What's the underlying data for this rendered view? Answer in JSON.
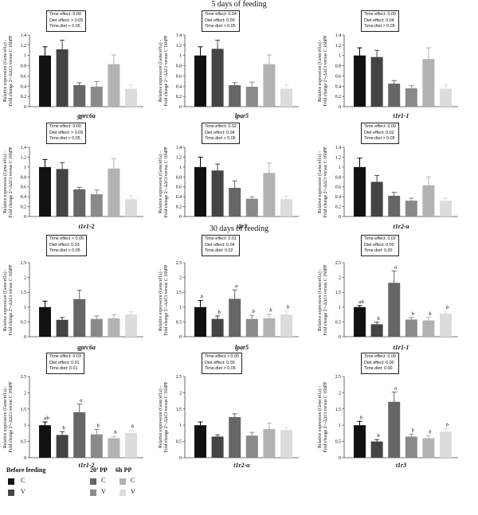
{
  "section_titles": [
    "5 days of feeding",
    "30 days of feeding"
  ],
  "ylabel_line1": "Relative expression (Gene/ef1a) -",
  "ylabel_line2": "Fold change 2^-ΔΔCt versus C 16hPP",
  "legend": {
    "groups": [
      "Before feeding",
      "20’ PP",
      "6h PP"
    ],
    "diets": [
      "C",
      "V"
    ],
    "colors": {
      "before_C": "#111111",
      "before_V": "#444444",
      "pp20_C": "#666666",
      "pp20_V": "#8a8a8a",
      "pp6h_C": "#b2b2b2",
      "pp6h_V": "#dcdcdc"
    }
  },
  "chart_data": [
    {
      "type": "bar",
      "title": "gprc6a",
      "section": "5 days of feeding",
      "ylim": [
        0,
        1.4
      ],
      "yticks": [
        "0",
        "0.2",
        "0.4",
        "0.6",
        "0.8",
        "1",
        "1.2",
        "1.4"
      ],
      "values": [
        1.0,
        1.12,
        0.42,
        0.39,
        0.83,
        0.35
      ],
      "errors": [
        0.17,
        0.18,
        0.05,
        0.1,
        0.18,
        0.08
      ],
      "letters": [
        "",
        "",
        "",
        "",
        "",
        ""
      ],
      "stats": [
        "Time effect: 0.00",
        "Diet effect: > 0.05",
        "Time.diet > 0.05"
      ]
    },
    {
      "type": "bar",
      "title": "lpar5",
      "section": "5 days of feeding",
      "ylim": [
        0,
        1.4
      ],
      "yticks": [
        "0",
        "0.2",
        "0.4",
        "0.6",
        "0.8",
        "1",
        "1.2",
        "1.4"
      ],
      "values": [
        1.0,
        1.13,
        0.42,
        0.39,
        0.83,
        0.35
      ],
      "errors": [
        0.17,
        0.17,
        0.05,
        0.09,
        0.18,
        0.08
      ],
      "letters": [
        "",
        "",
        "",
        "",
        "",
        ""
      ],
      "stats": [
        "Time effect: 0.04",
        "Diet effect: 0.00",
        "Time.diet > 0.05"
      ]
    },
    {
      "type": "bar",
      "title": "t1r1-1",
      "section": "5 days of feeding",
      "ylim": [
        0,
        1.4
      ],
      "yticks": [
        "0",
        "0.2",
        "0.4",
        "0.6",
        "0.8",
        "1",
        "1.2",
        "1.4"
      ],
      "values": [
        1.0,
        0.97,
        0.45,
        0.36,
        0.93,
        0.35
      ],
      "errors": [
        0.15,
        0.13,
        0.06,
        0.05,
        0.22,
        0.08
      ],
      "letters": [
        "",
        "",
        "",
        "",
        "",
        ""
      ],
      "stats": [
        "Time effect: 0.00",
        "Diet effect: 0.04",
        "Time.diet > 0.05"
      ]
    },
    {
      "type": "bar",
      "title": "t1r1-2",
      "section": "5 days of feeding",
      "ylim": [
        0,
        1.4
      ],
      "yticks": [
        "0",
        "0.2",
        "0.4",
        "0.6",
        "0.8",
        "1",
        "1.2",
        "1.4"
      ],
      "values": [
        1.0,
        0.96,
        0.55,
        0.45,
        0.97,
        0.35
      ],
      "errors": [
        0.15,
        0.13,
        0.04,
        0.09,
        0.2,
        0.08
      ],
      "letters": [
        "",
        "",
        "",
        "",
        "",
        ""
      ],
      "stats": [
        "Time effect: 0.00",
        "Diet effect: > 0.05",
        "Time.diet > 0.05"
      ]
    },
    {
      "type": "bar",
      "title": "t1r3",
      "section": "5 days of feeding",
      "ylim": [
        0,
        1.4
      ],
      "yticks": [
        "0",
        "0.2",
        "0.4",
        "0.6",
        "0.8",
        "1",
        "1.2",
        "1.4"
      ],
      "values": [
        1.0,
        0.93,
        0.58,
        0.36,
        0.88,
        0.35
      ],
      "errors": [
        0.2,
        0.13,
        0.14,
        0.04,
        0.2,
        0.06
      ],
      "letters": [
        "",
        "",
        "",
        "",
        "",
        ""
      ],
      "stats": [
        "Time effect: 0.02",
        "Diet effect: 0.04",
        "Time.diet > 0.05"
      ]
    },
    {
      "type": "bar",
      "title": "t1r2-a",
      "section": "5 days of feeding",
      "ylim": [
        0,
        1.4
      ],
      "yticks": [
        "0",
        "0.2",
        "0.4",
        "0.6",
        "0.8",
        "1",
        "1.2",
        "1.4"
      ],
      "values": [
        1.0,
        0.7,
        0.42,
        0.32,
        0.63,
        0.32
      ],
      "errors": [
        0.18,
        0.13,
        0.07,
        0.05,
        0.17,
        0.05
      ],
      "letters": [
        "",
        "",
        "",
        "",
        "",
        ""
      ],
      "stats": [
        "Time effect: 0.00",
        "Diet effect: 0.02",
        "Time.diet > 0.05"
      ]
    },
    {
      "type": "bar",
      "title": "gprc6a",
      "section": "30 days of feeding",
      "ylim": [
        0,
        2.5
      ],
      "yticks": [
        "0",
        "0.5",
        "1",
        "1.5",
        "2",
        "2.5"
      ],
      "values": [
        1.0,
        0.57,
        1.27,
        0.6,
        0.62,
        0.75
      ],
      "errors": [
        0.2,
        0.08,
        0.3,
        0.1,
        0.12,
        0.1
      ],
      "letters": [
        "",
        "",
        "",
        "",
        "",
        ""
      ],
      "stats": [
        "Time effect > 0.05",
        "Diet effect: 0.03",
        "Time.diet > 0.05"
      ]
    },
    {
      "type": "bar",
      "title": "lpar5",
      "section": "30 days of feeding",
      "ylim": [
        0,
        2.5
      ],
      "yticks": [
        "0",
        "0.5",
        "1",
        "1.5",
        "2",
        "2.5"
      ],
      "values": [
        1.0,
        0.6,
        1.28,
        0.6,
        0.62,
        0.75
      ],
      "errors": [
        0.22,
        0.1,
        0.3,
        0.12,
        0.14,
        0.12
      ],
      "letters": [
        "b",
        "b",
        "a",
        "b",
        "b",
        "b"
      ],
      "stats": [
        "Time effect: 0.01",
        "Diet effect: 0.04",
        "Time.diet: 0.02"
      ]
    },
    {
      "type": "bar",
      "title": "t1r1-1",
      "section": "30 days of feeding",
      "ylim": [
        0,
        2.5
      ],
      "yticks": [
        "0",
        "0.5",
        "1",
        "1.5",
        "2",
        "2.5"
      ],
      "values": [
        1.0,
        0.42,
        1.82,
        0.58,
        0.55,
        0.78
      ],
      "errors": [
        0.05,
        0.07,
        0.4,
        0.07,
        0.1,
        0.08
      ],
      "letters": [
        "ab",
        "b",
        "a",
        "b",
        "b",
        "b"
      ],
      "stats": [
        "Time effect: 0.02",
        "Diet effect: 0.00",
        "Time.diet: 0.00"
      ]
    },
    {
      "type": "bar",
      "title": "t1r1-2",
      "section": "30 days of feeding",
      "ylim": [
        0,
        2.5
      ],
      "yticks": [
        "0",
        "0.5",
        "1",
        "1.5",
        "2",
        "2.5"
      ],
      "values": [
        1.0,
        0.7,
        1.4,
        0.72,
        0.6,
        0.76
      ],
      "errors": [
        0.1,
        0.1,
        0.25,
        0.15,
        0.06,
        0.08
      ],
      "letters": [
        "ab",
        "b",
        "a",
        "b",
        "b",
        "b"
      ],
      "stats": [
        "Time effect: 0.03",
        "Diet effect: 0.01",
        "Time.diet: 0.01"
      ]
    },
    {
      "type": "bar",
      "title": "t1r2-α",
      "section": "30 days of feeding",
      "ylim": [
        0,
        2.5
      ],
      "yticks": [
        "0",
        "0.5",
        "1",
        "1.5",
        "2",
        "2.5"
      ],
      "values": [
        1.0,
        0.65,
        1.25,
        0.68,
        0.88,
        0.85
      ],
      "errors": [
        0.1,
        0.05,
        0.1,
        0.1,
        0.18,
        0.08
      ],
      "letters": [
        "",
        "",
        "",
        "",
        "",
        ""
      ],
      "stats": [
        "Time effect > 0.05",
        "Diet effect: 0.00",
        "Time.diet > 0.05"
      ]
    },
    {
      "type": "bar",
      "title": "t1r3",
      "section": "30 days of feeding",
      "ylim": [
        0,
        2.5
      ],
      "yticks": [
        "0",
        "0.5",
        "1",
        "1.5",
        "2",
        "2.5"
      ],
      "values": [
        1.0,
        0.5,
        1.72,
        0.65,
        0.6,
        0.8
      ],
      "errors": [
        0.12,
        0.06,
        0.3,
        0.07,
        0.08,
        0.1
      ],
      "letters": [
        "b",
        "b",
        "a",
        "b",
        "b",
        "b"
      ],
      "stats": [
        "Time effect: 0.00",
        "Diet effect: 0.00",
        "Time.diet: 0.00"
      ]
    }
  ]
}
